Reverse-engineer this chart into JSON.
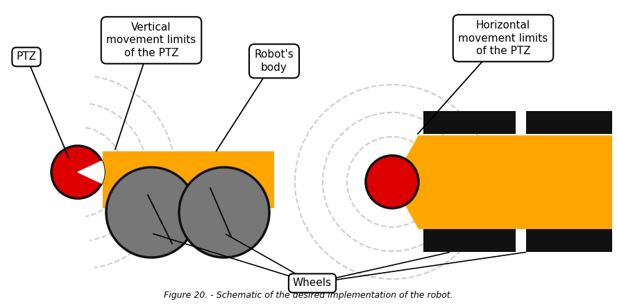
{
  "bg_color": "#ffffff",
  "orange_color": "#FFA500",
  "red_color": "#DD0000",
  "gray_color": "#777777",
  "black_color": "#111111",
  "dash_color": "#cccccc",
  "labels": {
    "PTZ": "PTZ",
    "vertical": "Vertical\nmovement limits\nof the PTZ",
    "robots_body": "Robot's\nbody",
    "wheels": "Wheels",
    "horizontal": "Horizontal\nmovement limits\nof the PTZ"
  },
  "title": "Figure 20. - Schematic of the desired implementation of the robot."
}
